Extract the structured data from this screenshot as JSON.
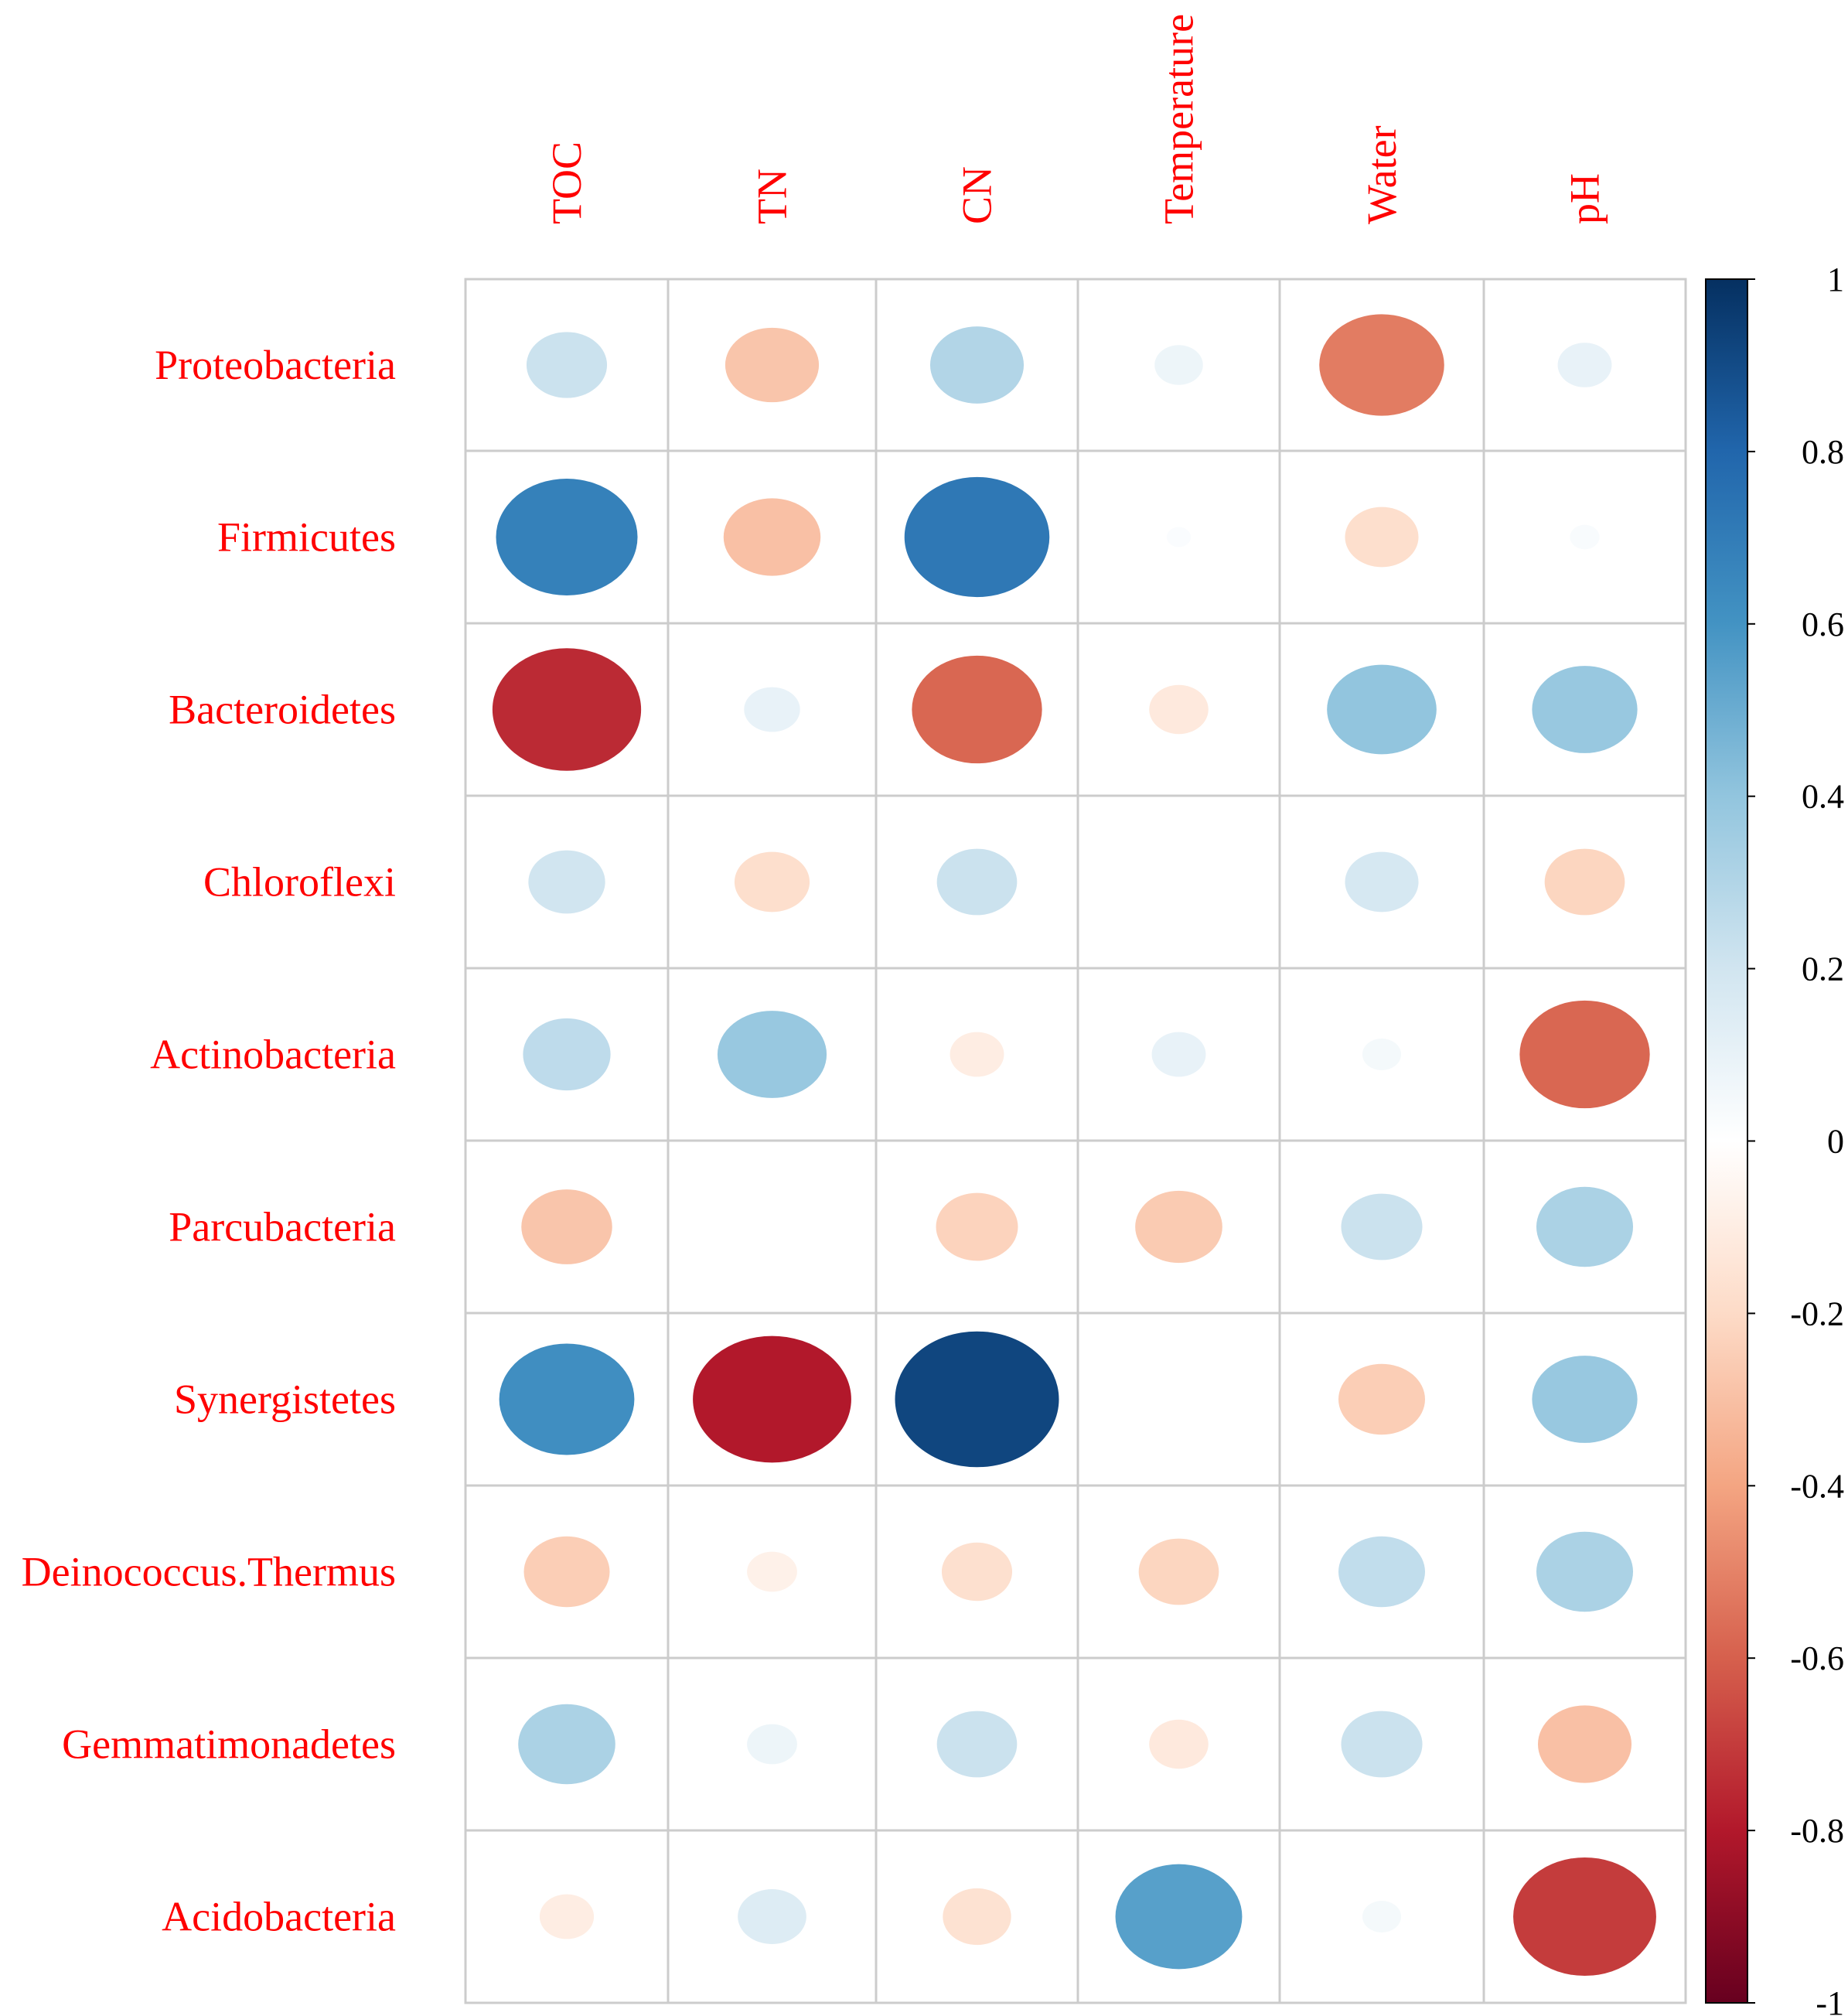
{
  "chart_data": {
    "type": "heatmap",
    "style": "circle correlation matrix",
    "title": "",
    "label_color": "#ff0000",
    "columns": [
      "TOC",
      "TN",
      "CN",
      "Temperature",
      "Water",
      "pH"
    ],
    "rows": [
      "Proteobacteria",
      "Firmicutes",
      "Bacteroidetes",
      "Chloroflexi",
      "Actinobacteria",
      "Parcubacteria",
      "Synergistetes",
      "Deinococcus.Thermus",
      "Gemmatimonadetes",
      "Acidobacteria"
    ],
    "values": [
      [
        0.22,
        -0.28,
        0.3,
        0.08,
        -0.52,
        0.1
      ],
      [
        0.68,
        -0.3,
        0.72,
        0.02,
        -0.18,
        0.03
      ],
      [
        -0.75,
        0.1,
        -0.58,
        -0.12,
        0.4,
        0.38
      ],
      [
        0.2,
        -0.18,
        0.22,
        0.0,
        0.18,
        -0.22
      ],
      [
        0.26,
        0.38,
        -0.1,
        0.1,
        0.05,
        -0.58
      ],
      [
        -0.28,
        0.0,
        -0.23,
        -0.26,
        0.22,
        0.32
      ],
      [
        0.62,
        -0.8,
        0.92,
        0.0,
        -0.25,
        0.38
      ],
      [
        -0.25,
        -0.08,
        -0.17,
        -0.22,
        0.25,
        0.32
      ],
      [
        0.32,
        0.08,
        0.22,
        -0.12,
        0.22,
        -0.3
      ],
      [
        -0.1,
        0.15,
        -0.16,
        0.55,
        0.05,
        -0.7
      ]
    ],
    "colorbar": {
      "range": [
        -1,
        1
      ],
      "ticks": [
        1,
        0.8,
        0.6,
        0.4,
        0.2,
        0,
        -0.2,
        -0.4,
        -0.6,
        -0.8,
        -1
      ],
      "tick_labels": [
        "1",
        "0.8",
        "0.6",
        "0.4",
        "0.2",
        "0",
        "-0.2",
        "-0.4",
        "-0.6",
        "-0.8",
        "-1"
      ],
      "colors": [
        "#67001f",
        "#b2182b",
        "#d6604d",
        "#f4a582",
        "#fddbc7",
        "#ffffff",
        "#d1e5f0",
        "#92c5de",
        "#4393c3",
        "#2166ac",
        "#053061"
      ]
    },
    "grid": true,
    "grid_color": "#cccccc",
    "legend": "right"
  }
}
